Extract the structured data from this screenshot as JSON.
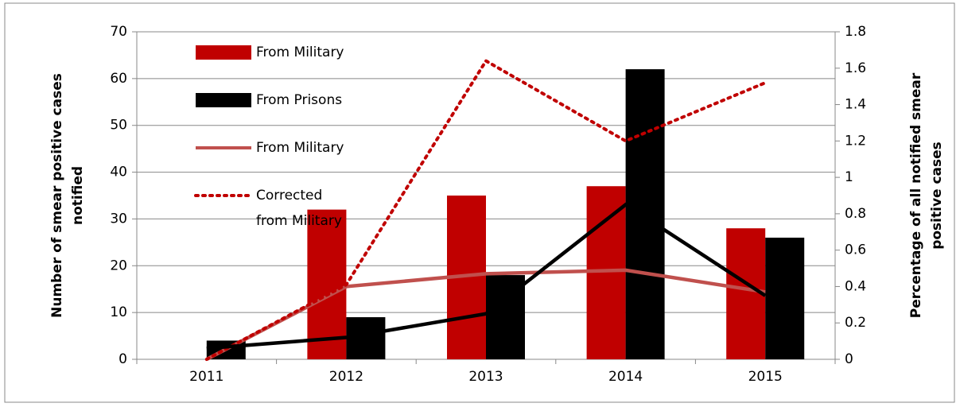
{
  "chart_data": {
    "type": "combo",
    "y_label": "Number of smear positive cases notified",
    "y2_label": "Percentage of all notified smear positive cases",
    "categories": [
      "2011",
      "2012",
      "2013",
      "2014",
      "2015"
    ],
    "ylim": [
      0,
      70
    ],
    "yticks": [
      0,
      10,
      20,
      30,
      40,
      50,
      60,
      70
    ],
    "y2lim": [
      0,
      1.8
    ],
    "y2ticks": [
      0,
      0.2,
      0.4,
      0.6,
      0.8,
      1,
      1.2,
      1.4,
      1.6,
      1.8
    ],
    "grid": true,
    "legend": "top-left",
    "series": [
      {
        "name": "From Military",
        "type": "bar",
        "color": "#c00000",
        "values": [
          0,
          32,
          35,
          37,
          28
        ]
      },
      {
        "name": "From Prisons",
        "type": "bar",
        "color": "#000000",
        "values": [
          4,
          9,
          18,
          62,
          26
        ]
      },
      {
        "name": "From Military",
        "type": "line",
        "style": "solid",
        "axis": "y2",
        "color": "#c0504d",
        "values": [
          0,
          0.4,
          0.47,
          0.49,
          0.37
        ]
      },
      {
        "name": "Corrected from Military",
        "type": "line",
        "style": "dotted",
        "axis": "y2",
        "color": "#c00000",
        "values": [
          0,
          0.41,
          1.64,
          1.2,
          1.52
        ]
      },
      {
        "type": "line",
        "style": "solid",
        "axis": "y2",
        "color": "#000000",
        "values": [
          0.06,
          0.12,
          0.25,
          0.85,
          0.35
        ]
      }
    ]
  }
}
